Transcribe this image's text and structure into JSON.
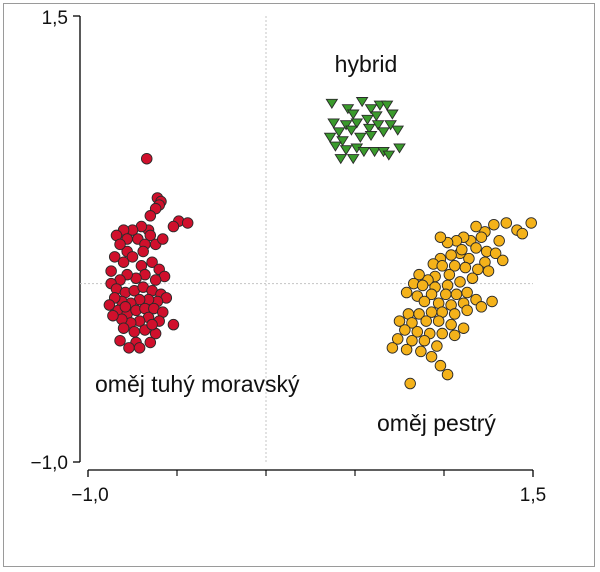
{
  "chart_data": {
    "type": "scatter",
    "title": "",
    "xlabel": "",
    "ylabel": "",
    "xlim": [
      -1.0,
      1.5
    ],
    "ylim": [
      -1.0,
      1.5
    ],
    "x_tick_labels": [
      "−1,0",
      "1,5"
    ],
    "y_tick_labels": [
      "1,5",
      "−1,0"
    ],
    "reference_lines": {
      "x": 0.0,
      "y": 0.0
    },
    "grid": false,
    "series": [
      {
        "name": "oměj tuhý moravský",
        "marker": "circle",
        "color": "#d0102c",
        "points": [
          [
            -0.67,
            0.7
          ],
          [
            -0.61,
            0.48
          ],
          [
            -0.59,
            0.46
          ],
          [
            -0.6,
            0.44
          ],
          [
            -0.62,
            0.42
          ],
          [
            -0.65,
            0.38
          ],
          [
            -0.49,
            0.35
          ],
          [
            -0.52,
            0.32
          ],
          [
            -0.44,
            0.34
          ],
          [
            -0.66,
            0.3
          ],
          [
            -0.7,
            0.32
          ],
          [
            -0.75,
            0.3
          ],
          [
            -0.8,
            0.3
          ],
          [
            -0.84,
            0.27
          ],
          [
            -0.78,
            0.25
          ],
          [
            -0.72,
            0.25
          ],
          [
            -0.65,
            0.27
          ],
          [
            -0.68,
            0.22
          ],
          [
            -0.62,
            0.22
          ],
          [
            -0.78,
            0.18
          ],
          [
            -0.82,
            0.22
          ],
          [
            -0.85,
            0.15
          ],
          [
            -0.8,
            0.12
          ],
          [
            -0.75,
            0.15
          ],
          [
            -0.7,
            0.1
          ],
          [
            -0.64,
            0.12
          ],
          [
            -0.6,
            0.08
          ],
          [
            -0.57,
            0.04
          ],
          [
            -0.62,
            0.02
          ],
          [
            -0.68,
            0.05
          ],
          [
            -0.73,
            0.03
          ],
          [
            -0.78,
            0.05
          ],
          [
            -0.82,
            0.02
          ],
          [
            -0.87,
            0.0
          ],
          [
            -0.84,
            -0.03
          ],
          [
            -0.79,
            -0.05
          ],
          [
            -0.74,
            -0.04
          ],
          [
            -0.69,
            -0.02
          ],
          [
            -0.64,
            -0.04
          ],
          [
            -0.59,
            -0.06
          ],
          [
            -0.56,
            -0.08
          ],
          [
            -0.61,
            -0.1
          ],
          [
            -0.66,
            -0.09
          ],
          [
            -0.71,
            -0.09
          ],
          [
            -0.76,
            -0.11
          ],
          [
            -0.81,
            -0.1
          ],
          [
            -0.85,
            -0.08
          ],
          [
            -0.88,
            -0.12
          ],
          [
            -0.83,
            -0.15
          ],
          [
            -0.78,
            -0.17
          ],
          [
            -0.73,
            -0.15
          ],
          [
            -0.68,
            -0.14
          ],
          [
            -0.63,
            -0.14
          ],
          [
            -0.58,
            -0.16
          ],
          [
            -0.52,
            -0.23
          ],
          [
            -0.6,
            -0.21
          ],
          [
            -0.66,
            -0.19
          ],
          [
            -0.71,
            -0.21
          ],
          [
            -0.76,
            -0.22
          ],
          [
            -0.81,
            -0.2
          ],
          [
            -0.86,
            -0.18
          ],
          [
            -0.8,
            -0.25
          ],
          [
            -0.74,
            -0.27
          ],
          [
            -0.68,
            -0.26
          ],
          [
            -0.62,
            -0.28
          ],
          [
            -0.65,
            -0.33
          ],
          [
            -0.73,
            -0.33
          ],
          [
            -0.82,
            -0.32
          ],
          [
            -0.77,
            -0.36
          ],
          [
            -0.71,
            -0.36
          ],
          [
            -0.64,
            -0.23
          ],
          [
            -0.79,
            -0.13
          ],
          [
            -0.69,
            0.18
          ],
          [
            -0.58,
            0.25
          ],
          [
            -0.87,
            0.07
          ]
        ]
      },
      {
        "name": "hybrid",
        "marker": "triangle-down",
        "color": "#3a9a2c",
        "points": [
          [
            0.37,
            1.01
          ],
          [
            0.46,
            0.98
          ],
          [
            0.49,
            0.95
          ],
          [
            0.54,
            1.02
          ],
          [
            0.59,
            0.98
          ],
          [
            0.64,
            1.0
          ],
          [
            0.68,
            1.0
          ],
          [
            0.71,
            0.95
          ],
          [
            0.62,
            0.94
          ],
          [
            0.57,
            0.92
          ],
          [
            0.45,
            0.89
          ],
          [
            0.38,
            0.9
          ],
          [
            0.51,
            0.9
          ],
          [
            0.63,
            0.89
          ],
          [
            0.7,
            0.89
          ],
          [
            0.74,
            0.86
          ],
          [
            0.66,
            0.85
          ],
          [
            0.58,
            0.87
          ],
          [
            0.48,
            0.86
          ],
          [
            0.41,
            0.85
          ],
          [
            0.36,
            0.82
          ],
          [
            0.43,
            0.8
          ],
          [
            0.53,
            0.82
          ],
          [
            0.39,
            0.77
          ],
          [
            0.45,
            0.75
          ],
          [
            0.51,
            0.76
          ],
          [
            0.55,
            0.74
          ],
          [
            0.61,
            0.74
          ],
          [
            0.66,
            0.74
          ],
          [
            0.69,
            0.72
          ],
          [
            0.75,
            0.76
          ],
          [
            0.59,
            0.83
          ],
          [
            0.42,
            0.7
          ],
          [
            0.49,
            0.7
          ]
        ]
      },
      {
        "name": "oměj pestrý",
        "marker": "circle",
        "color": "#f4b21a",
        "points": [
          [
            1.49,
            0.34
          ],
          [
            1.41,
            0.3
          ],
          [
            1.44,
            0.28
          ],
          [
            1.35,
            0.34
          ],
          [
            1.28,
            0.33
          ],
          [
            1.23,
            0.29
          ],
          [
            1.18,
            0.32
          ],
          [
            1.31,
            0.24
          ],
          [
            1.21,
            0.26
          ],
          [
            1.15,
            0.24
          ],
          [
            1.11,
            0.26
          ],
          [
            1.07,
            0.24
          ],
          [
            1.02,
            0.23
          ],
          [
            0.98,
            0.26
          ],
          [
            1.18,
            0.2
          ],
          [
            1.24,
            0.18
          ],
          [
            1.29,
            0.17
          ],
          [
            1.33,
            0.13
          ],
          [
            1.23,
            0.12
          ],
          [
            1.14,
            0.14
          ],
          [
            1.09,
            0.17
          ],
          [
            1.04,
            0.16
          ],
          [
            0.98,
            0.14
          ],
          [
            0.94,
            0.11
          ],
          [
            0.99,
            0.1
          ],
          [
            1.06,
            0.1
          ],
          [
            1.12,
            0.09
          ],
          [
            1.19,
            0.08
          ],
          [
            1.25,
            0.07
          ],
          [
            1.03,
            0.05
          ],
          [
            0.95,
            0.04
          ],
          [
            0.91,
            0.02
          ],
          [
            0.86,
            0.05
          ],
          [
            0.83,
            0.0
          ],
          [
            0.88,
            -0.01
          ],
          [
            0.95,
            -0.02
          ],
          [
            1.02,
            -0.01
          ],
          [
            1.09,
            0.01
          ],
          [
            1.16,
            0.03
          ],
          [
            1.13,
            -0.05
          ],
          [
            1.07,
            -0.06
          ],
          [
            1.01,
            -0.06
          ],
          [
            0.93,
            -0.06
          ],
          [
            0.85,
            -0.07
          ],
          [
            0.79,
            -0.05
          ],
          [
            0.89,
            -0.1
          ],
          [
            0.97,
            -0.11
          ],
          [
            1.04,
            -0.12
          ],
          [
            1.11,
            -0.11
          ],
          [
            1.18,
            -0.09
          ],
          [
            1.21,
            -0.13
          ],
          [
            1.13,
            -0.15
          ],
          [
            1.06,
            -0.17
          ],
          [
            0.99,
            -0.16
          ],
          [
            0.93,
            -0.16
          ],
          [
            0.86,
            -0.17
          ],
          [
            0.8,
            -0.17
          ],
          [
            0.75,
            -0.21
          ],
          [
            0.82,
            -0.22
          ],
          [
            0.9,
            -0.21
          ],
          [
            0.97,
            -0.21
          ],
          [
            1.04,
            -0.23
          ],
          [
            1.11,
            -0.25
          ],
          [
            0.78,
            -0.26
          ],
          [
            0.85,
            -0.27
          ],
          [
            0.92,
            -0.28
          ],
          [
            0.99,
            -0.28
          ],
          [
            1.06,
            -0.29
          ],
          [
            0.74,
            -0.31
          ],
          [
            0.82,
            -0.32
          ],
          [
            0.89,
            -0.32
          ],
          [
            0.96,
            -0.35
          ],
          [
            0.71,
            -0.36
          ],
          [
            0.79,
            -0.37
          ],
          [
            0.87,
            -0.38
          ],
          [
            0.93,
            -0.41
          ],
          [
            0.98,
            -0.46
          ],
          [
            1.02,
            -0.51
          ],
          [
            1.27,
            -0.1
          ],
          [
            1.1,
            0.19
          ],
          [
            0.81,
            -0.56
          ]
        ]
      }
    ],
    "annotations": [
      "hybrid",
      "oměj tuhý moravský",
      "oměj pestrý"
    ]
  }
}
